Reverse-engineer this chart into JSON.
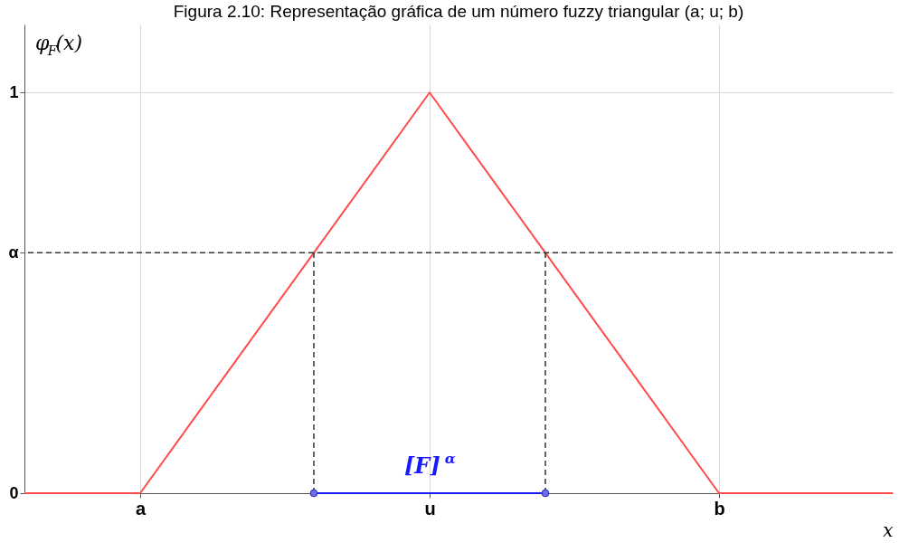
{
  "chart_data": {
    "type": "line",
    "title": "Figura 2.10: Representação gráfica de um número fuzzy triangular (a; u; b)",
    "xlabel": "x",
    "ylabel": "φ$_{F}$(x)",
    "categories": [
      null,
      null,
      "a",
      null,
      null,
      null,
      null,
      "u",
      null,
      null,
      null,
      null,
      "b",
      null,
      null,
      null
    ],
    "ylim": [
      0,
      1.17
    ],
    "yticks": [
      0,
      {
        "value": 0.6,
        "label": "α"
      },
      1
    ],
    "grid": true,
    "series": [
      {
        "color": "#ff4d4d",
        "values": [
          0,
          0,
          0,
          0.2,
          0.4,
          0.6,
          0.8,
          1,
          0.8,
          0.6,
          0.4,
          0.2,
          0,
          0,
          0,
          0
        ]
      },
      {
        "color": "#1a1aff",
        "values": [
          null,
          null,
          null,
          null,
          null,
          0,
          0,
          0,
          0,
          0,
          null,
          null,
          null,
          null,
          null,
          null
        ]
      },
      {
        "type": "scatter",
        "color": "#6b6bf0",
        "marker": "circle",
        "values": [
          null,
          null,
          null,
          null,
          null,
          0,
          null,
          null,
          null,
          0,
          null,
          null,
          null,
          null,
          null,
          null
        ],
        "errors": [
          null,
          null,
          null,
          null,
          null,
          [
            0,
            0.6
          ],
          null,
          null,
          null,
          [
            0,
            0.6
          ],
          null,
          null,
          null,
          null,
          null,
          null
        ]
      }
    ],
    "ref_lines": [
      {
        "axis": "y",
        "value": 0.6,
        "color": "#333333",
        "line_style": "dashed"
      }
    ],
    "annotations": [
      {
        "text": "[F]$^{α}$",
        "x": "u",
        "y": 0
      }
    ]
  }
}
